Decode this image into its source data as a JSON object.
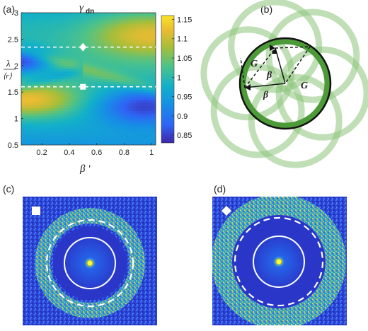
{
  "figure": {
    "panels": {
      "a": {
        "label": "(a)",
        "title_symbol": "γ",
        "title_subscript": "dn",
        "x_label": "β '",
        "y_label_numerator": "λ",
        "y_label_denominator": "⟨r⟩",
        "markers": [
          {
            "shape": "square",
            "x": 0.5,
            "y": 1.6
          },
          {
            "shape": "diamond",
            "x": 0.5,
            "y": 2.35
          }
        ]
      },
      "b": {
        "label": "(b)",
        "labels": {
          "g_left": "G",
          "g_right": "G",
          "beta_top": "β",
          "beta_bottom": "β"
        }
      },
      "c": {
        "label": "(c)",
        "marker": "square"
      },
      "d": {
        "label": "(d)",
        "marker": "diamond"
      }
    },
    "colors": {
      "colormap": [
        "#3e26a8",
        "#2f64f5",
        "#168fe6",
        "#12b1c8",
        "#4cc28a",
        "#a5be3a",
        "#e8bb32",
        "#f9e327"
      ],
      "ring_green": "#4c9a38",
      "ring_green_light": "#8cc47a"
    }
  },
  "chart_data": {
    "type": "heatmap",
    "xlabel": "β '",
    "ylabel": "λ/⟨r⟩",
    "xlim": [
      0.05,
      1.03
    ],
    "ylim": [
      0.5,
      3.0
    ],
    "x_ticks": [
      "0.2",
      "0.4",
      "0.6",
      "0.8",
      "1"
    ],
    "y_ticks": [
      "0.5",
      "1",
      "1.5",
      "2",
      "2.5",
      "3"
    ],
    "colorbar": {
      "min": 0.83,
      "max": 1.16,
      "ticks": [
        "0.85",
        "0.9",
        "0.95",
        "1",
        "1.05",
        "1.1",
        "1.15"
      ]
    },
    "dashed_lines_y": [
      1.6,
      2.35
    ]
  }
}
